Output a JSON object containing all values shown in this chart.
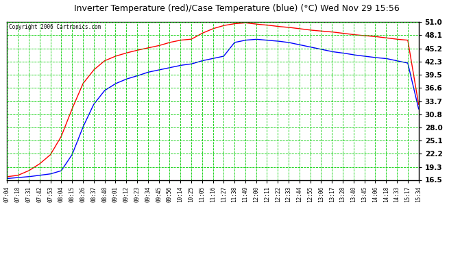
{
  "title": "Inverter Temperature (red)/Case Temperature (blue) (°C) Wed Nov 29 15:56",
  "copyright": "Copyright 2006 Cartronics.com",
  "fig_bg_color": "#ffffff",
  "plot_bg_color": "#ffffff",
  "grid_color": "#00cc00",
  "border_color": "#000000",
  "yticks": [
    16.5,
    19.3,
    22.2,
    25.1,
    28.0,
    30.8,
    33.7,
    36.6,
    39.5,
    42.3,
    45.2,
    48.1,
    51.0
  ],
  "xtick_labels": [
    "07:04",
    "07:18",
    "07:31",
    "07:42",
    "07:53",
    "08:04",
    "08:15",
    "08:26",
    "08:37",
    "08:48",
    "09:01",
    "09:12",
    "09:23",
    "09:34",
    "09:45",
    "09:56",
    "10:14",
    "10:25",
    "11:05",
    "11:16",
    "11:27",
    "11:38",
    "11:49",
    "12:00",
    "12:11",
    "12:22",
    "12:33",
    "12:44",
    "12:55",
    "13:06",
    "13:17",
    "13:28",
    "13:40",
    "13:45",
    "14:06",
    "14:18",
    "14:33",
    "15:17",
    "15:34"
  ],
  "red_x": [
    0,
    1,
    2,
    3,
    4,
    5,
    6,
    7,
    8,
    9,
    10,
    11,
    12,
    13,
    14,
    15,
    16,
    17,
    18,
    19,
    20,
    21,
    22,
    23,
    24,
    25,
    26,
    27,
    28,
    29,
    30,
    31,
    32,
    33,
    34,
    35,
    36,
    37,
    38
  ],
  "red_y": [
    17.2,
    17.5,
    18.5,
    20.0,
    22.0,
    26.0,
    32.0,
    37.5,
    40.5,
    42.5,
    43.5,
    44.2,
    44.8,
    45.3,
    45.8,
    46.5,
    47.0,
    47.2,
    48.5,
    49.5,
    50.2,
    50.6,
    50.8,
    50.5,
    50.3,
    50.0,
    49.8,
    49.5,
    49.2,
    49.0,
    48.8,
    48.5,
    48.2,
    48.0,
    47.8,
    47.5,
    47.2,
    47.0,
    33.0
  ],
  "blue_x": [
    0,
    1,
    2,
    3,
    4,
    5,
    6,
    7,
    8,
    9,
    10,
    11,
    12,
    13,
    14,
    15,
    16,
    17,
    18,
    19,
    20,
    21,
    22,
    23,
    24,
    25,
    26,
    27,
    28,
    29,
    30,
    31,
    32,
    33,
    34,
    35,
    36,
    37,
    38
  ],
  "blue_y": [
    16.8,
    17.0,
    17.2,
    17.5,
    17.8,
    18.5,
    22.0,
    28.0,
    33.0,
    36.0,
    37.5,
    38.5,
    39.2,
    40.0,
    40.5,
    41.0,
    41.5,
    41.8,
    42.5,
    43.0,
    43.5,
    46.5,
    47.0,
    47.2,
    47.0,
    46.8,
    46.5,
    46.0,
    45.5,
    45.0,
    44.5,
    44.2,
    43.8,
    43.5,
    43.2,
    43.0,
    42.5,
    42.0,
    32.0
  ]
}
